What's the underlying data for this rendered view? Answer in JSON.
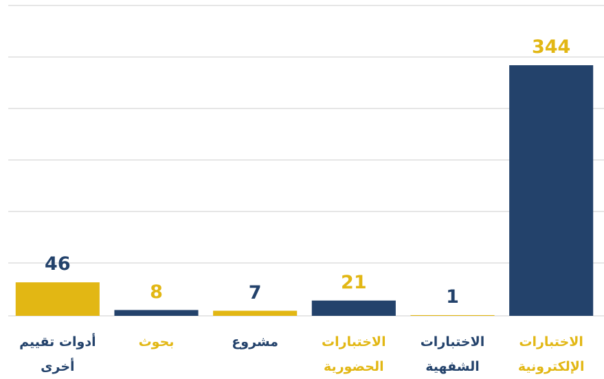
{
  "chart_data": {
    "type": "bar",
    "categories": [
      "أدوات تقييم\nأخرى",
      "بحوث",
      "مشروع",
      "الاختبارات\nالحضورية",
      "الاختبارات\nالشفهية",
      "الاختبارات\nالإلكترونية"
    ],
    "values": [
      46,
      8,
      7,
      21,
      1,
      344
    ],
    "colors": [
      "#e2b714",
      "#23426b",
      "#e2b714",
      "#23426b",
      "#e2b714",
      "#23426b"
    ],
    "label_colors": [
      "#23426b",
      "#e2b714",
      "#23426b",
      "#e2b714",
      "#23426b",
      "#e2b714"
    ],
    "ylim": [
      0,
      426
    ]
  }
}
